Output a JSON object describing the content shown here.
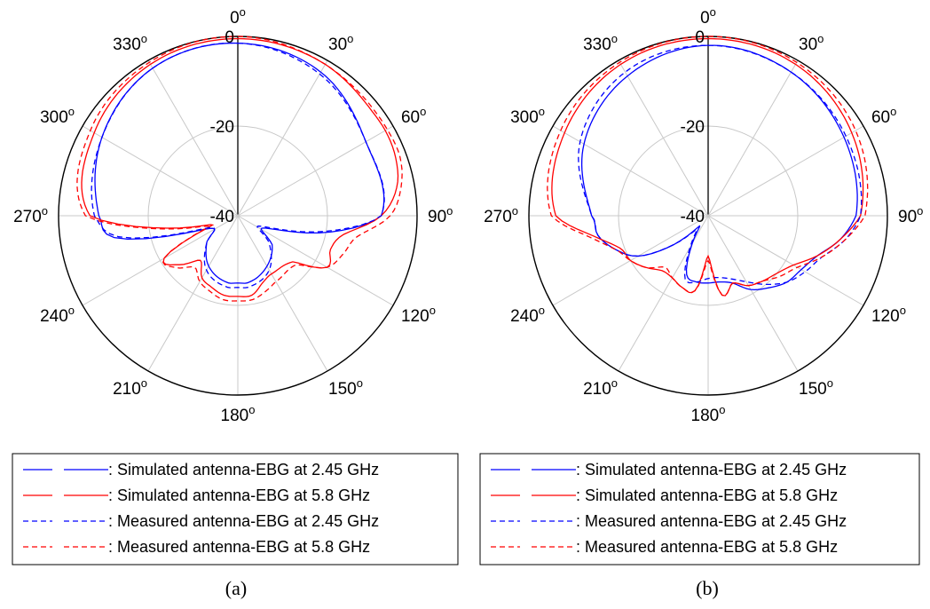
{
  "chart_data": [
    {
      "type": "polar",
      "panel_label": "(a)",
      "angle_labels": [
        "0",
        "30",
        "60",
        "90",
        "120",
        "150",
        "180",
        "210",
        "240",
        "270",
        "300",
        "330"
      ],
      "angle_unit": "o",
      "radial_labels": [
        "0",
        "-20",
        "-40"
      ],
      "rlim": [
        -40,
        0
      ],
      "grid": true,
      "legend_position": "bottom",
      "series": [
        {
          "name": ": Simulated antenna-EBG at 2.45 GHz",
          "color": "#0000ff",
          "dash": "solid",
          "angles": [
            0,
            30,
            60,
            90,
            100,
            110,
            120,
            130,
            150,
            170,
            180,
            190,
            210,
            230,
            240,
            250,
            260,
            270,
            300,
            330
          ],
          "values": [
            -1.5,
            -3,
            -7,
            -8,
            -19,
            -31,
            -34,
            -30,
            -27,
            -25,
            -25,
            -25,
            -27,
            -31,
            -34,
            -30,
            -12,
            -9,
            -5,
            -2
          ]
        },
        {
          "name": ": Simulated antenna-EBG at 5.8 GHz",
          "color": "#ff0000",
          "dash": "solid",
          "angles": [
            0,
            30,
            50,
            60,
            70,
            80,
            90,
            100,
            110,
            120,
            130,
            150,
            160,
            170,
            180,
            190,
            200,
            210,
            220,
            230,
            240,
            250,
            260,
            270,
            300,
            330
          ],
          "values": [
            -0.5,
            -1,
            -2,
            -2,
            -2.5,
            -4,
            -8,
            -16,
            -18,
            -17,
            -24,
            -25,
            -24,
            -22,
            -22,
            -22,
            -23,
            -24,
            -27,
            -23,
            -21,
            -34,
            -24,
            -7,
            -3,
            -1
          ]
        },
        {
          "name": ": Measured antenna-EBG at 2.45 GHz",
          "color": "#0000ff",
          "dash": "dashed",
          "angles": [
            0,
            30,
            60,
            90,
            100,
            110,
            120,
            130,
            150,
            170,
            180,
            190,
            210,
            230,
            240,
            250,
            260,
            270,
            300,
            330
          ],
          "values": [
            -1.5,
            -3.5,
            -7,
            -8,
            -20,
            -32,
            -35,
            -31,
            -26,
            -24,
            -24,
            -24,
            -26,
            -31,
            -34,
            -31,
            -13,
            -8,
            -5,
            -2
          ]
        },
        {
          "name": ": Measured antenna-EBG at 5.8 GHz",
          "color": "#ff0000",
          "dash": "dashed",
          "angles": [
            0,
            30,
            50,
            60,
            70,
            80,
            90,
            100,
            110,
            120,
            130,
            150,
            160,
            170,
            180,
            190,
            200,
            210,
            220,
            230,
            240,
            250,
            260,
            270,
            300,
            330
          ],
          "values": [
            0,
            -1,
            -1.5,
            -1.5,
            -1.5,
            -3,
            -6,
            -13,
            -15,
            -17,
            -23,
            -23,
            -22,
            -21,
            -21,
            -21,
            -22,
            -23,
            -25,
            -22,
            -21,
            -33,
            -23,
            -6,
            -2,
            -0.5
          ]
        }
      ]
    },
    {
      "type": "polar",
      "panel_label": "(b)",
      "angle_labels": [
        "0",
        "30",
        "60",
        "90",
        "120",
        "150",
        "180",
        "210",
        "240",
        "270",
        "300",
        "330"
      ],
      "angle_unit": "o",
      "radial_labels": [
        "0",
        "-20",
        "-40"
      ],
      "rlim": [
        -40,
        0
      ],
      "grid": true,
      "legend_position": "bottom",
      "series": [
        {
          "name": ": Simulated antenna-EBG at 2.45 GHz",
          "color": "#0000ff",
          "dash": "solid",
          "angles": [
            0,
            30,
            60,
            90,
            100,
            110,
            120,
            130,
            140,
            150,
            160,
            170,
            180,
            190,
            200,
            210,
            220,
            230,
            240,
            250,
            260,
            270,
            300,
            330
          ],
          "values": [
            -2,
            -3,
            -5,
            -7,
            -10,
            -14,
            -16,
            -17,
            -19,
            -21,
            -24,
            -25,
            -25,
            -25,
            -26,
            -33,
            -37,
            -30,
            -22,
            -18,
            -15,
            -14,
            -8,
            -4
          ]
        },
        {
          "name": ": Simulated antenna-EBG at 5.8 GHz",
          "color": "#ff0000",
          "dash": "solid",
          "angles": [
            0,
            30,
            60,
            90,
            100,
            110,
            120,
            130,
            140,
            150,
            160,
            170,
            180,
            190,
            200,
            210,
            220,
            230,
            240,
            250,
            260,
            270,
            300,
            330
          ],
          "values": [
            -0.5,
            -1,
            -3,
            -6,
            -10,
            -14,
            -18,
            -20,
            -21,
            -22,
            -24,
            -22,
            -31,
            -23,
            -23,
            -24,
            -24,
            -22,
            -20,
            -19,
            -14,
            -6,
            -3,
            -1
          ]
        },
        {
          "name": ": Measured antenna-EBG at 2.45 GHz",
          "color": "#0000ff",
          "dash": "dashed",
          "angles": [
            0,
            30,
            60,
            90,
            100,
            110,
            120,
            130,
            140,
            150,
            160,
            170,
            180,
            190,
            200,
            210,
            220,
            230,
            240,
            250,
            260,
            270,
            300,
            330
          ],
          "values": [
            -2,
            -3,
            -4.5,
            -6,
            -9,
            -13,
            -15,
            -17,
            -20,
            -23,
            -25,
            -26,
            -26,
            -25,
            -25,
            -32,
            -36,
            -30,
            -22,
            -18,
            -15,
            -14,
            -7,
            -3
          ]
        },
        {
          "name": ": Measured antenna-EBG at 5.8 GHz",
          "color": "#ff0000",
          "dash": "dashed",
          "angles": [
            0,
            30,
            60,
            90,
            100,
            110,
            120,
            130,
            140,
            150,
            160,
            170,
            180,
            190,
            200,
            210,
            220,
            230,
            240,
            250,
            260,
            270,
            300,
            330
          ],
          "values": [
            0,
            -0.5,
            -2,
            -5,
            -9,
            -13,
            -17,
            -19,
            -21,
            -22,
            -24,
            -22,
            -30,
            -23,
            -23,
            -24,
            -25,
            -22,
            -20,
            -18,
            -13,
            -5,
            -2,
            -0.5
          ]
        }
      ]
    }
  ]
}
